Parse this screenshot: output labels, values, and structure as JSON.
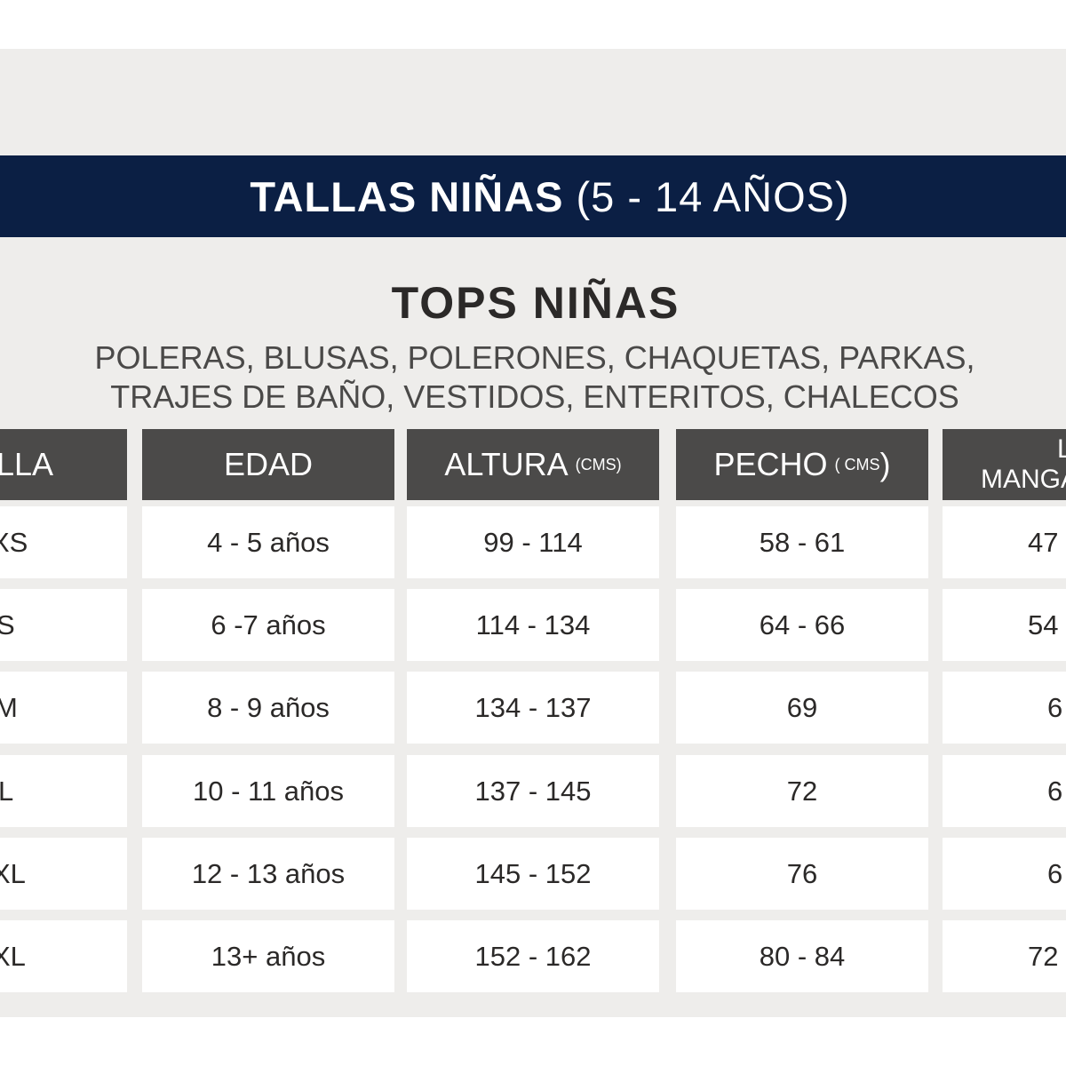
{
  "banner": {
    "title_bold": "TALLAS NIÑAS",
    "title_light": "(5 - 14 AÑOS)"
  },
  "section": {
    "title": "TOPS NIÑAS",
    "subtitle_line1": "POLERAS, BLUSAS, POLERONES, CHAQUETAS, PARKAS,",
    "subtitle_line2": "TRAJES DE BAÑO, VESTIDOS, ENTERITOS, CHALECOS"
  },
  "table": {
    "headers": {
      "talla": "LLA",
      "edad": "EDAD",
      "altura": "ALTURA",
      "altura_unit": "(CMS)",
      "pecho": "PECHO",
      "pecho_unit": "( CMS",
      "pecho_close": ")",
      "largo_line1": "LAR",
      "largo_line2": "MANGA"
    },
    "rows": [
      {
        "talla": "XS",
        "edad": "4 - 5 años",
        "altura": "99 - 114",
        "pecho": "58 - 61",
        "largo": "47"
      },
      {
        "talla": "S",
        "edad": "6 -7 años",
        "altura": "114 - 134",
        "pecho": "64 - 66",
        "largo": "54"
      },
      {
        "talla": "M",
        "edad": "8 - 9 años",
        "altura": "134 - 137",
        "pecho": "69",
        "largo": "6"
      },
      {
        "talla": "L",
        "edad": "10 - 11 años",
        "altura": "137 - 145",
        "pecho": "72",
        "largo": "6"
      },
      {
        "talla": "XL",
        "edad": "12 - 13 años",
        "altura": "145 - 152",
        "pecho": "76",
        "largo": "6"
      },
      {
        "talla": "XL",
        "edad": "13+ años",
        "altura": "152 - 162",
        "pecho": "80 - 84",
        "largo": "72"
      }
    ]
  },
  "colors": {
    "banner": "#0b1f44",
    "header": "#4b4a49",
    "panel": "#eeedeb",
    "text": "#2b2928"
  }
}
